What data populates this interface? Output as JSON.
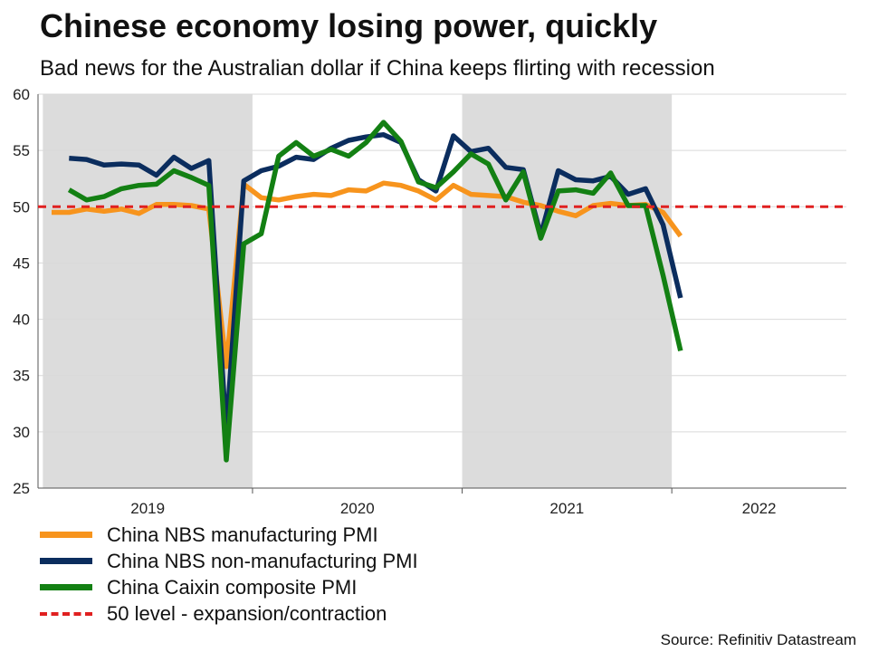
{
  "chart_data": {
    "type": "line",
    "title": "Chinese economy losing power, quickly",
    "subtitle": "Bad news for the Australian dollar if China keeps flirting with recession",
    "ylim": [
      25,
      60
    ],
    "yticks": [
      25,
      30,
      35,
      40,
      45,
      50,
      55,
      60
    ],
    "year_labels": [
      "2019",
      "2020",
      "2021",
      "2022"
    ],
    "shaded_years": [
      "2019",
      "2021"
    ],
    "x_start": "2019-01",
    "months": [
      "2019-01",
      "2019-02",
      "2019-03",
      "2019-04",
      "2019-05",
      "2019-06",
      "2019-07",
      "2019-08",
      "2019-09",
      "2019-10",
      "2019-11",
      "2019-12",
      "2020-01",
      "2020-02",
      "2020-03",
      "2020-04",
      "2020-05",
      "2020-06",
      "2020-07",
      "2020-08",
      "2020-09",
      "2020-10",
      "2020-11",
      "2020-12",
      "2021-01",
      "2021-02",
      "2021-03",
      "2021-04",
      "2021-05",
      "2021-06",
      "2021-07",
      "2021-08",
      "2021-09",
      "2021-10",
      "2021-11",
      "2021-12",
      "2022-01",
      "2022-02",
      "2022-03",
      "2022-04"
    ],
    "series": [
      {
        "name": "China NBS manufacturing PMI",
        "color": "#f7941d",
        "values": [
          49.5,
          49.5,
          49.8,
          49.6,
          49.8,
          49.4,
          50.2,
          50.2,
          50.1,
          49.8,
          35.8,
          52.0,
          50.8,
          50.6,
          50.9,
          51.1,
          51.0,
          51.5,
          51.4,
          52.1,
          51.9,
          51.4,
          50.6,
          51.9,
          51.1,
          51.0,
          50.9,
          50.4,
          50.1,
          49.6,
          49.2,
          50.1,
          50.3,
          50.1,
          50.2,
          49.5,
          47.4
        ]
      },
      {
        "name": "China NBS non-manufacturing PMI",
        "color": "#0b2d5e",
        "values": [
          54.3,
          54.2,
          53.7,
          53.8,
          53.7,
          52.8,
          54.4,
          53.4,
          54.1,
          30.0,
          52.3,
          53.2,
          53.6,
          54.4,
          54.2,
          55.2,
          55.9,
          56.2,
          56.4,
          55.7,
          52.4,
          51.4,
          56.3,
          54.9,
          55.2,
          53.5,
          53.3,
          47.5,
          53.2,
          52.4,
          52.3,
          52.7,
          51.1,
          51.6,
          48.4,
          41.9
        ]
      },
      {
        "name": "China Caixin composite PMI",
        "color": "#138013",
        "values": [
          51.5,
          50.6,
          50.9,
          51.6,
          51.9,
          52.0,
          53.2,
          52.6,
          51.9,
          27.5,
          46.7,
          47.6,
          54.5,
          55.7,
          54.5,
          55.1,
          54.5,
          55.7,
          57.5,
          55.8,
          52.2,
          51.7,
          53.1,
          54.7,
          53.8,
          50.6,
          53.1,
          47.2,
          51.4,
          51.5,
          51.2,
          53.0,
          50.1,
          50.1,
          43.9,
          37.2
        ]
      }
    ],
    "reference_line": {
      "value": 50,
      "name": "50 level - expansion/contraction",
      "color": "#e02020"
    },
    "legend": [
      {
        "label": "China NBS manufacturing PMI",
        "color": "#f7941d",
        "style": "solid"
      },
      {
        "label": "China NBS non-manufacturing PMI",
        "color": "#0b2d5e",
        "style": "solid"
      },
      {
        "label": "China Caixin composite PMI",
        "color": "#138013",
        "style": "solid"
      },
      {
        "label": "50 level - expansion/contraction",
        "color": "#e02020",
        "style": "dashed"
      }
    ],
    "source": "Source: Refinitiv Datastream"
  }
}
